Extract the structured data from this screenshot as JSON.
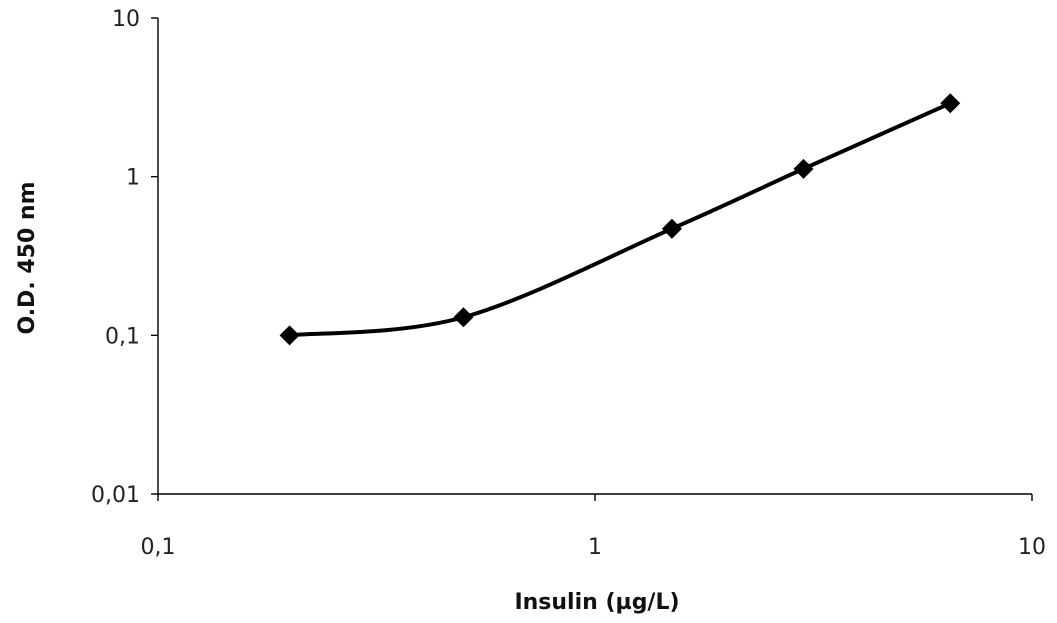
{
  "chart_data": {
    "type": "line",
    "title": "",
    "xlabel": "Insulin (µg/L)",
    "ylabel": "O.D. 450 nm",
    "x_scale": "log",
    "y_scale": "log",
    "xlim": [
      0.1,
      10
    ],
    "ylim": [
      0.01,
      10
    ],
    "x_ticks": [
      {
        "value": 0.1,
        "label": "0,1"
      },
      {
        "value": 1,
        "label": "1"
      },
      {
        "value": 10,
        "label": "10"
      }
    ],
    "y_ticks": [
      {
        "value": 0.01,
        "label": "0,01"
      },
      {
        "value": 0.1,
        "label": "0,1"
      },
      {
        "value": 1,
        "label": "1"
      },
      {
        "value": 10,
        "label": "10"
      }
    ],
    "grid": false,
    "legend": "none",
    "series": [
      {
        "color": "#000000",
        "marker": "diamond",
        "smooth": true,
        "points": [
          {
            "x": 0.2,
            "y": 0.1
          },
          {
            "x": 0.5,
            "y": 0.13
          },
          {
            "x": 1.5,
            "y": 0.47
          },
          {
            "x": 3.0,
            "y": 1.12
          },
          {
            "x": 6.5,
            "y": 2.9
          }
        ]
      }
    ]
  }
}
